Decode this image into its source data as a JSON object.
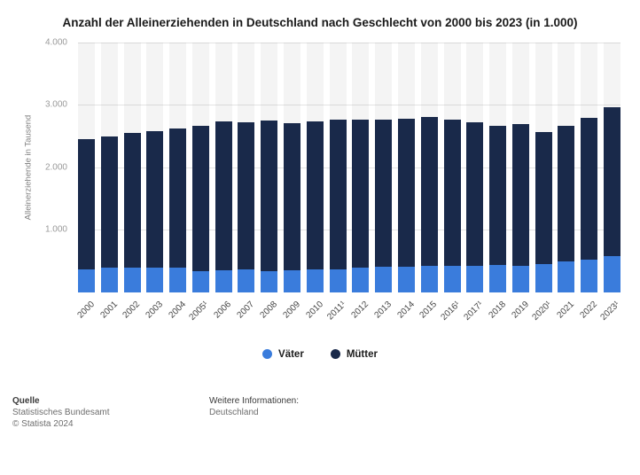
{
  "title": "Anzahl der Alleinerziehenden in Deutschland nach Geschlecht von 2000 bis 2023 (in 1.000)",
  "chart_data": {
    "type": "bar",
    "stacked": true,
    "title": "Anzahl der Alleinerziehenden in Deutschland nach Geschlecht von 2000 bis 2023 (in 1.000)",
    "xlabel": "",
    "ylabel": "Alleinerziehende in Tausend",
    "ylim": [
      0,
      4000
    ],
    "grid": true,
    "legend_position": "bottom",
    "categories": [
      "2000",
      "2001",
      "2002",
      "2003",
      "2004",
      "2005¹",
      "2006",
      "2007",
      "2008",
      "2009",
      "2010",
      "2011¹",
      "2012",
      "2013",
      "2014",
      "2015",
      "2016¹",
      "2017¹",
      "2018",
      "2019",
      "2020¹",
      "2021",
      "2022",
      "2023¹"
    ],
    "series": [
      {
        "name": "Väter",
        "color": "#3a7cdc",
        "values": [
          375,
          390,
          390,
          395,
          400,
          335,
          350,
          365,
          345,
          355,
          370,
          375,
          400,
          405,
          410,
          425,
          425,
          430,
          435,
          430,
          450,
          500,
          520,
          580
        ]
      },
      {
        "name": "Mütter",
        "color": "#19294a",
        "values": [
          2080,
          2110,
          2160,
          2190,
          2230,
          2330,
          2390,
          2355,
          2400,
          2360,
          2370,
          2385,
          2370,
          2355,
          2375,
          2380,
          2345,
          2290,
          2230,
          2260,
          2110,
          2160,
          2270,
          2390
        ]
      }
    ],
    "yticks": [
      {
        "value": 4000,
        "label": "4.000"
      },
      {
        "value": 3000,
        "label": "3.000"
      },
      {
        "value": 2000,
        "label": "2.000"
      },
      {
        "value": 1000,
        "label": "1.000"
      }
    ]
  },
  "footer": {
    "source_label": "Quelle",
    "source": "Statistisches Bundesamt",
    "copyright": "© Statista 2024",
    "info_label": "Weitere Informationen:",
    "info": "Deutschland"
  }
}
